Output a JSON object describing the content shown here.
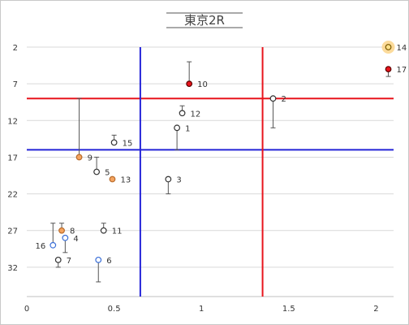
{
  "chart_data": {
    "type": "scatter",
    "title": "東京2R",
    "xlabel": "",
    "ylabel": "",
    "xlim": [
      0,
      2.1
    ],
    "ylim": [
      2,
      36
    ],
    "y_reversed": true,
    "x_ticks": [
      "0",
      "0.5",
      "1",
      "1.5",
      "2"
    ],
    "x_tick_values": [
      0,
      0.5,
      1,
      1.5,
      2
    ],
    "y_ticks": [
      "2",
      "7",
      "12",
      "17",
      "22",
      "27",
      "32"
    ],
    "y_tick_values": [
      2,
      7,
      12,
      17,
      22,
      27,
      32
    ],
    "grid": "horizontal",
    "legend": "none",
    "reference_lines": [
      {
        "orientation": "horizontal",
        "value": 9,
        "color": "#e8141c"
      },
      {
        "orientation": "horizontal",
        "value": 16,
        "color": "#2424d8"
      },
      {
        "orientation": "vertical",
        "value": 0.65,
        "color": "#2424d8"
      },
      {
        "orientation": "vertical",
        "value": 1.35,
        "color": "#e8141c"
      }
    ],
    "points": [
      {
        "label": "1",
        "x": 0.86,
        "y": 13,
        "err_low": 3,
        "err_high": 0,
        "marker": "white"
      },
      {
        "label": "2",
        "x": 1.41,
        "y": 9,
        "err_low": 4,
        "err_high": 0,
        "marker": "white"
      },
      {
        "label": "3",
        "x": 0.81,
        "y": 20,
        "err_low": 2,
        "err_high": 0,
        "marker": "white"
      },
      {
        "label": "4",
        "x": 0.22,
        "y": 28,
        "err_low": 2,
        "err_high": 0,
        "marker": "blue-outline"
      },
      {
        "label": "5",
        "x": 0.4,
        "y": 19,
        "err_low": 0,
        "err_high": 2,
        "marker": "white"
      },
      {
        "label": "6",
        "x": 0.41,
        "y": 31,
        "err_low": 3,
        "err_high": 0,
        "marker": "blue-outline"
      },
      {
        "label": "7",
        "x": 0.18,
        "y": 31,
        "err_low": 1,
        "err_high": 0,
        "marker": "white"
      },
      {
        "label": "8",
        "x": 0.2,
        "y": 27,
        "err_low": 0,
        "err_high": 1,
        "marker": "orange"
      },
      {
        "label": "9",
        "x": 0.3,
        "y": 17,
        "err_low": 0,
        "err_high": 8,
        "marker": "orange"
      },
      {
        "label": "10",
        "x": 0.93,
        "y": 7,
        "err_low": 0,
        "err_high": 3,
        "marker": "red"
      },
      {
        "label": "11",
        "x": 0.44,
        "y": 27,
        "err_low": 0,
        "err_high": 1,
        "marker": "white"
      },
      {
        "label": "12",
        "x": 0.89,
        "y": 11,
        "err_low": 0,
        "err_high": 1,
        "marker": "white"
      },
      {
        "label": "13",
        "x": 0.49,
        "y": 20,
        "err_low": 0,
        "err_high": 0,
        "marker": "orange"
      },
      {
        "label": "14",
        "x": 2.07,
        "y": 2,
        "err_low": 0,
        "err_high": 0,
        "marker": "highlight"
      },
      {
        "label": "15",
        "x": 0.5,
        "y": 15,
        "err_low": 0,
        "err_high": 1,
        "marker": "white"
      },
      {
        "label": "16",
        "x": 0.15,
        "y": 29,
        "err_low": 0,
        "err_high": 3,
        "marker": "blue-outline"
      },
      {
        "label": "17",
        "x": 2.07,
        "y": 5,
        "err_low": 1,
        "err_high": 0,
        "marker": "red"
      }
    ]
  },
  "colors": {
    "red": "#e8141c",
    "blue": "#2424d8",
    "grid": "#d9d9d9",
    "axis": "#bfbfbf",
    "marker_outline": "#333333",
    "orange": "#f4a460",
    "highlight_glow": "#fbd58a",
    "blue_outline": "#3a6fd8"
  }
}
